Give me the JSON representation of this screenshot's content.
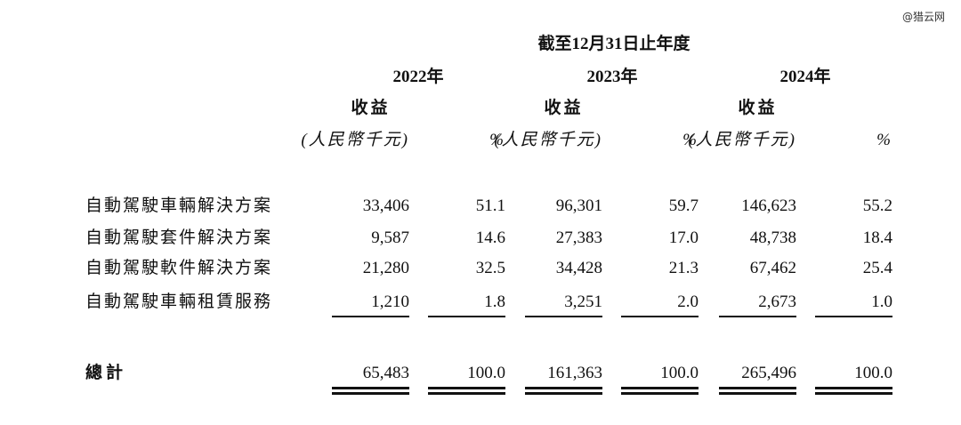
{
  "watermark": "@猎云网",
  "header": {
    "title": "截至12月31日止年度",
    "years": [
      "2022年",
      "2023年",
      "2024年"
    ],
    "metric": [
      "收益",
      "收益",
      "收益"
    ],
    "units": [
      "(人民幣千元)",
      "%",
      "(人民幣千元)",
      "%",
      "(人民幣千元)",
      "%"
    ]
  },
  "table": {
    "rows": [
      [
        "自動駕駛車輛解決方案",
        "33,406",
        "51.1",
        "96,301",
        "59.7",
        "146,623",
        "55.2"
      ],
      [
        "自動駕駛套件解決方案",
        "9,587",
        "14.6",
        "27,383",
        "17.0",
        "48,738",
        "18.4"
      ],
      [
        "自動駕駛軟件解決方案",
        "21,280",
        "32.5",
        "34,428",
        "21.3",
        "67,462",
        "25.4"
      ],
      [
        "自動駕駛車輛租賃服務",
        "1,210",
        "1.8",
        "3,251",
        "2.0",
        "2,673",
        "1.0"
      ]
    ],
    "total": [
      "總計",
      "65,483",
      "100.0",
      "161,363",
      "100.0",
      "265,496",
      "100.0"
    ]
  }
}
